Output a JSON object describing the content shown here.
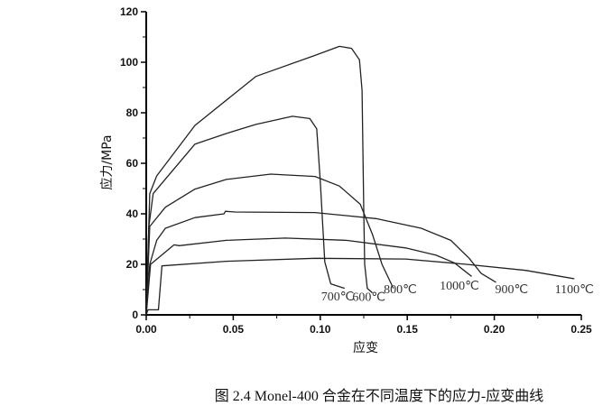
{
  "chart_data": {
    "type": "line",
    "title": "",
    "caption": "图 2.4 Monel-400 合金在不同温度下的应力-应变曲线",
    "xlabel": "应变",
    "ylabel": "应力/MPa",
    "xlim": [
      0,
      0.25
    ],
    "ylim": [
      0,
      120
    ],
    "xticks": [
      "0.00",
      "0.05",
      "0.10",
      "0.15",
      "0.20",
      "0.25"
    ],
    "yticks": [
      "0",
      "20",
      "40",
      "60",
      "80",
      "100",
      "120"
    ],
    "grid": false,
    "line_color": "#222222",
    "series": [
      {
        "name": "600℃",
        "label_at": [
          0.128,
          5.5
        ],
        "x": [
          0,
          0.002,
          0.006,
          0.028,
          0.063,
          0.097,
          0.111,
          0.118,
          0.1225,
          0.124,
          0.125,
          0.1255,
          0.127,
          0.13
        ],
        "y": [
          0,
          48,
          55,
          75,
          94.4,
          102.7,
          106.3,
          105.5,
          101,
          89,
          41,
          20,
          10.5,
          8.7
        ]
      },
      {
        "name": "700℃",
        "label_at": [
          0.11,
          5.8
        ],
        "x": [
          0,
          0.0015,
          0.004,
          0.028,
          0.046,
          0.063,
          0.084,
          0.094,
          0.098,
          0.1,
          0.1026,
          0.106,
          0.114
        ],
        "y": [
          0,
          35,
          48,
          67.6,
          71.8,
          75.4,
          78.6,
          77.7,
          73.6,
          53,
          21,
          12.3,
          10.5
        ],
        "_": ""
      },
      {
        "name": "800℃",
        "label_at": [
          0.146,
          8.5
        ],
        "x": [
          0,
          0.002,
          0.011,
          0.028,
          0.046,
          0.0715,
          0.097,
          0.111,
          0.123,
          0.13,
          0.1355,
          0.142
        ],
        "y": [
          0,
          35,
          42.6,
          49.8,
          53.6,
          55.7,
          54.8,
          51,
          43.8,
          31.9,
          20,
          10.5
        ]
      },
      {
        "name": "900℃",
        "label_at": [
          0.21,
          8.5
        ],
        "x": [
          0,
          0.002,
          0.006,
          0.011,
          0.028,
          0.0447,
          0.0455,
          0.051,
          0.097,
          0.132,
          0.158,
          0.175,
          0.1856,
          0.1925,
          0.201
        ],
        "y": [
          0,
          20,
          29.5,
          34.3,
          38.5,
          40,
          41,
          40.7,
          40.5,
          38.1,
          34.3,
          29.5,
          22.4,
          16.4,
          12.9
        ]
      },
      {
        "name": "1000℃",
        "label_at": [
          0.18,
          10
        ],
        "x": [
          0,
          0.0025,
          0.016,
          0.019,
          0.046,
          0.08,
          0.115,
          0.149,
          0.1666,
          0.177,
          0.187
        ],
        "y": [
          0,
          20,
          27.7,
          27.4,
          29.5,
          30.4,
          29.5,
          26.5,
          23.6,
          20.6,
          15.2
        ]
      },
      {
        "name": "1100℃",
        "label_at": [
          0.246,
          8.5
        ],
        "x": [
          0,
          0.001,
          0.007,
          0.009,
          0.046,
          0.097,
          0.149,
          0.184,
          0.218,
          0.246
        ],
        "y": [
          0,
          2,
          2,
          19.4,
          21.2,
          22.4,
          22.1,
          20,
          17.6,
          14.3
        ]
      }
    ]
  }
}
